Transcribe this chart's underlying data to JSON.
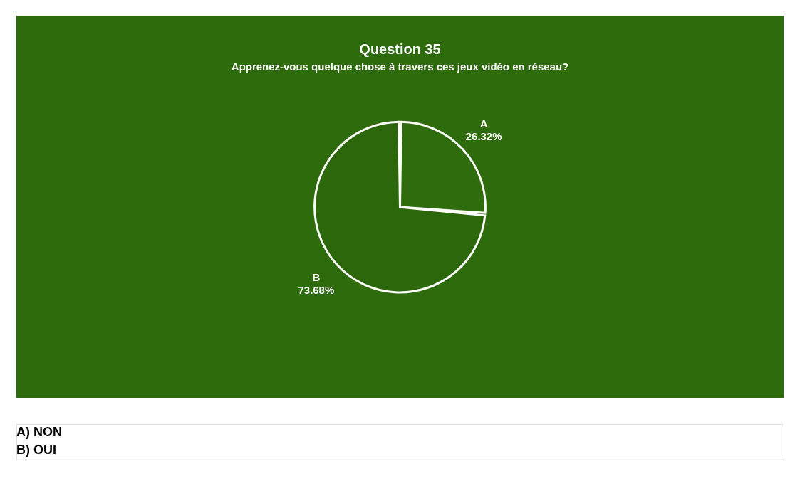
{
  "chart_data": {
    "type": "pie",
    "title": "Question 35",
    "subtitle": "Apprenez-vous quelque chose à travers ces jeux vidéo en réseau?",
    "categories": [
      "A",
      "B"
    ],
    "values": [
      26.32,
      73.68
    ],
    "colors": [
      "#2f6c0d",
      "#2c680b"
    ],
    "value_labels": [
      "26.32%",
      "73.68%"
    ],
    "annotations": [
      "A) NON",
      "B) OUI"
    ]
  }
}
